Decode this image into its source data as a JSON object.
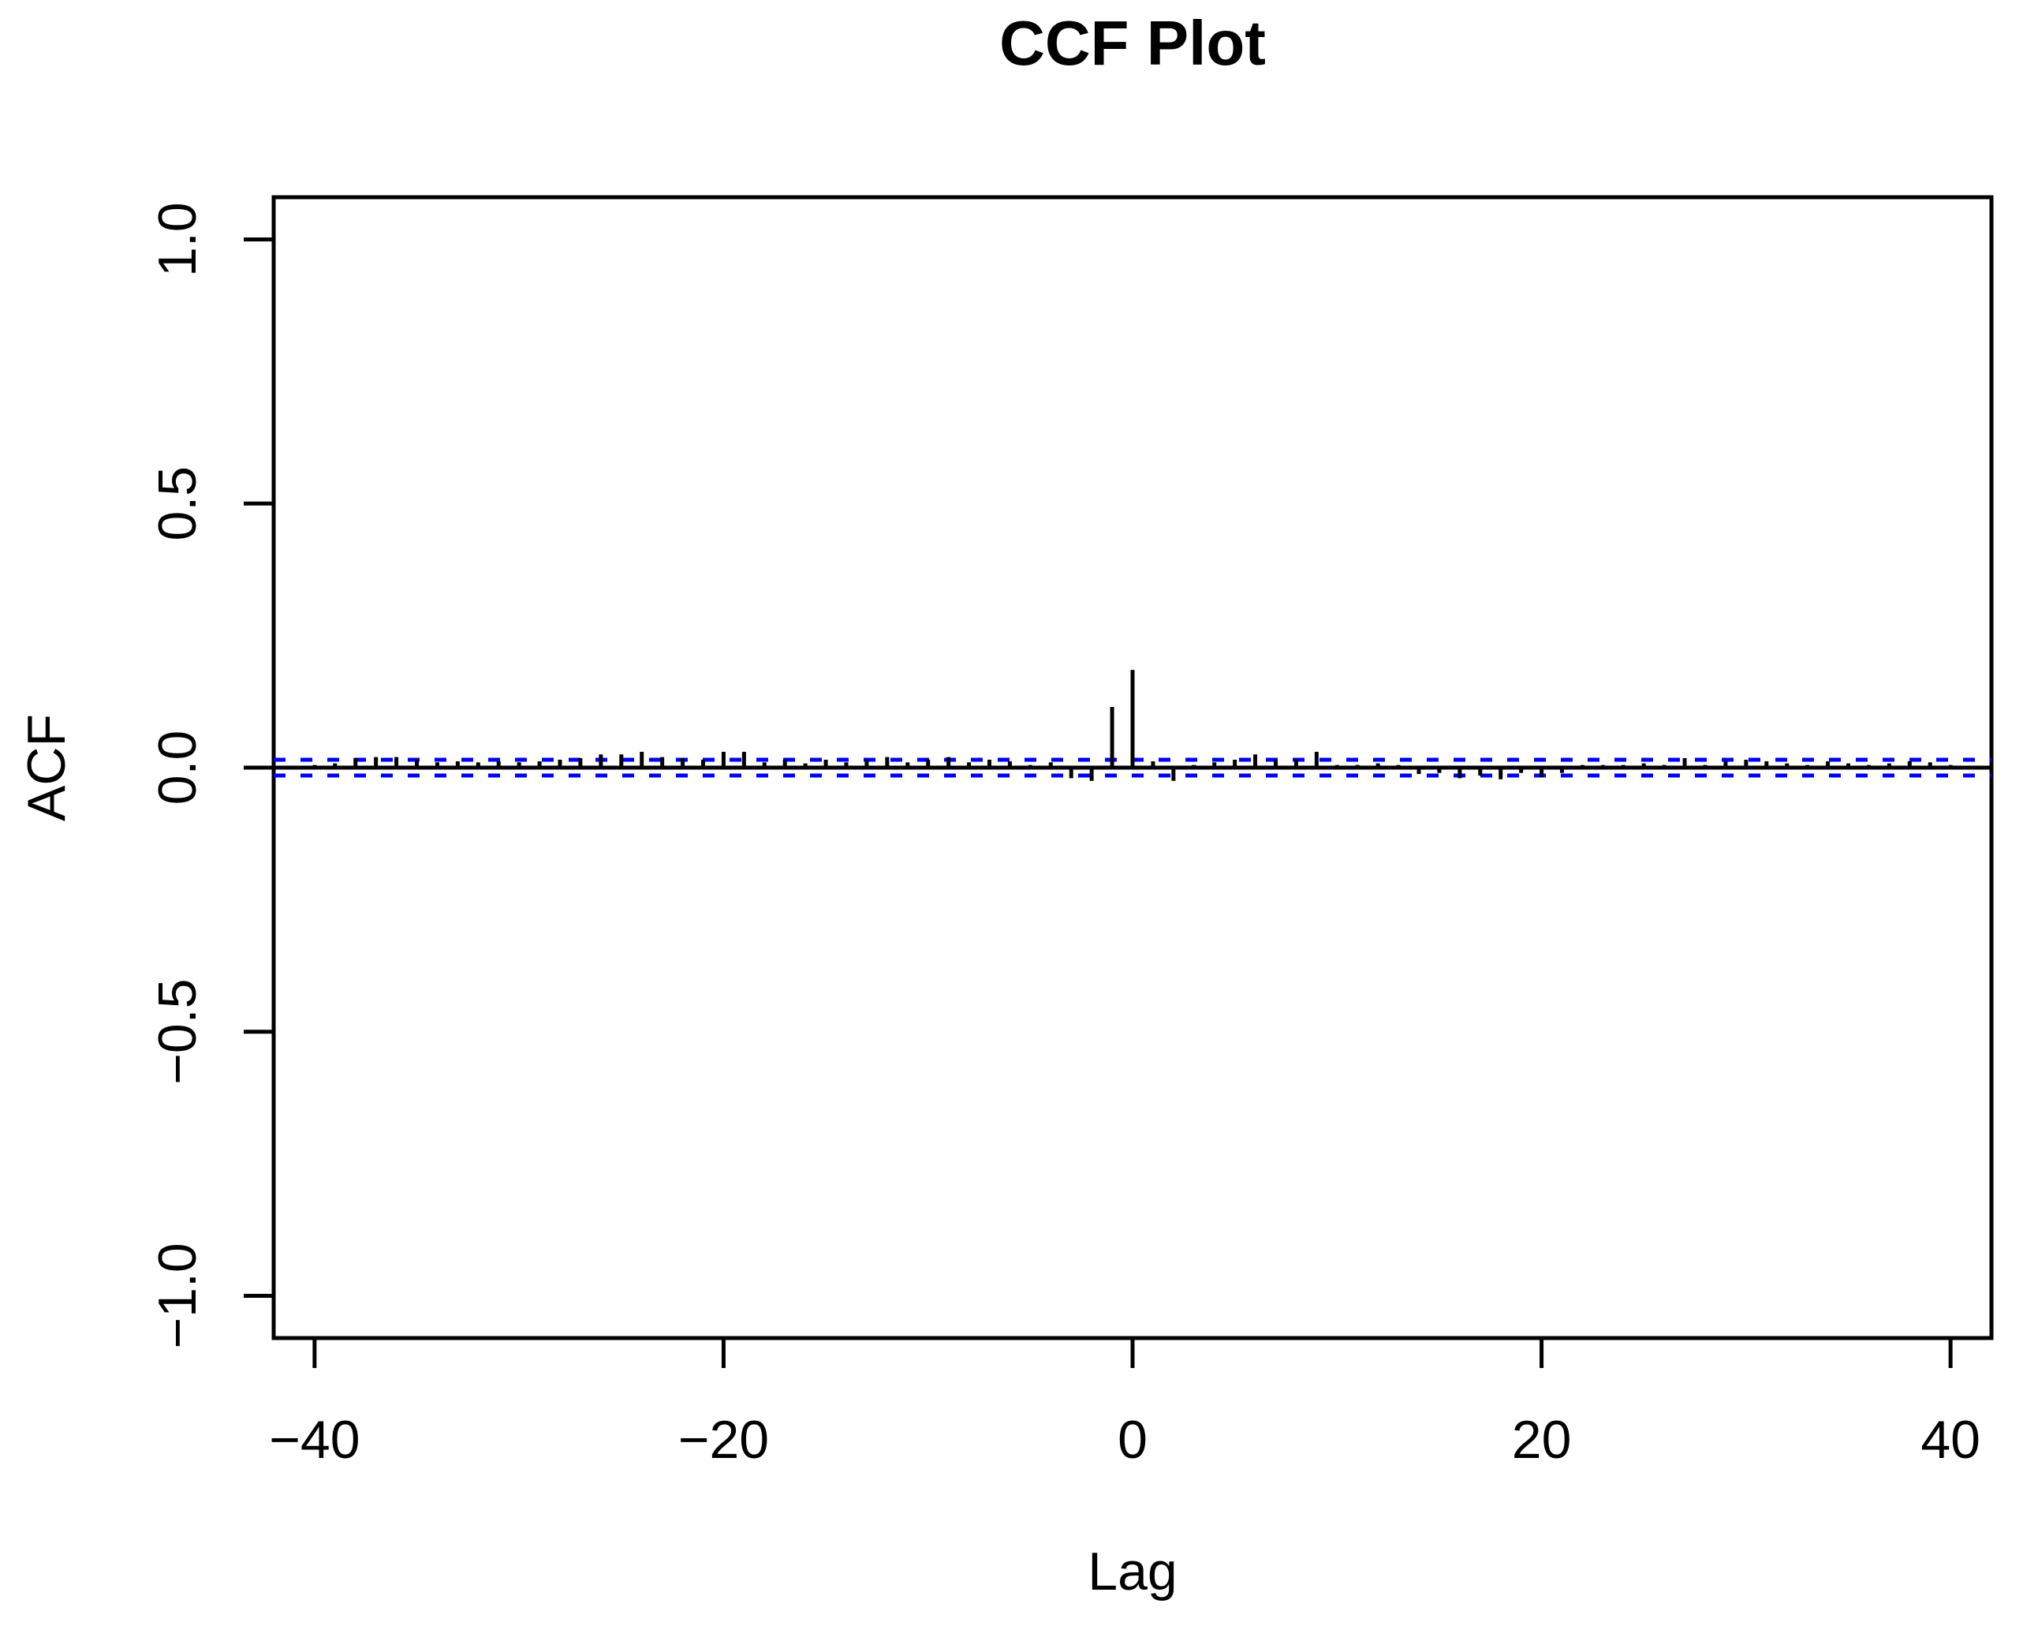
{
  "title": "CCF Plot",
  "chart_data": {
    "type": "bar",
    "title": "CCF Plot",
    "xlabel": "Lag",
    "ylabel": "ACF",
    "xlim": [
      -42,
      42
    ],
    "ylim": [
      -1.08,
      1.08
    ],
    "xticks": [
      -40,
      -20,
      0,
      20,
      40
    ],
    "xtick_labels": [
      "−40",
      "−20",
      "0",
      "20",
      "40"
    ],
    "yticks": [
      -1.0,
      -0.5,
      0.0,
      0.5,
      1.0
    ],
    "ytick_labels": [
      "−1.0",
      "−0.5",
      "0.0",
      "0.5",
      "1.0"
    ],
    "grid": "off",
    "legend": "none",
    "confidence_interval": 0.015,
    "ci_line_color": "#0000ff",
    "ci_line_style": "dashed",
    "bar_color": "#000000",
    "zero_line_color": "#000000",
    "lags": [
      -40,
      -39,
      -38,
      -37,
      -36,
      -35,
      -34,
      -33,
      -32,
      -31,
      -30,
      -29,
      -28,
      -27,
      -26,
      -25,
      -24,
      -23,
      -22,
      -21,
      -20,
      -19,
      -18,
      -17,
      -16,
      -15,
      -14,
      -13,
      -12,
      -11,
      -10,
      -9,
      -8,
      -7,
      -6,
      -5,
      -4,
      -3,
      -2,
      -1,
      0,
      1,
      2,
      3,
      4,
      5,
      6,
      7,
      8,
      9,
      10,
      11,
      12,
      13,
      14,
      15,
      16,
      17,
      18,
      19,
      20,
      21,
      22,
      23,
      24,
      25,
      26,
      27,
      28,
      29,
      30,
      31,
      32,
      33,
      34,
      35,
      36,
      37,
      38,
      39,
      40
    ],
    "values": [
      0.005,
      0.008,
      0.018,
      0.02,
      0.02,
      0.015,
      0.01,
      0.012,
      0.01,
      0.012,
      0.01,
      0.012,
      0.015,
      0.018,
      0.025,
      0.025,
      0.03,
      0.02,
      0.018,
      0.015,
      0.03,
      0.03,
      0.01,
      0.015,
      0.008,
      0.015,
      0.01,
      0.015,
      0.02,
      0.01,
      0.015,
      0.02,
      0.01,
      0.015,
      0.012,
      0.005,
      0.01,
      -0.02,
      -0.025,
      0.115,
      0.185,
      0.012,
      -0.025,
      0.005,
      0.01,
      0.015,
      0.025,
      0.015,
      0.015,
      0.03,
      0.005,
      0.005,
      0.008,
      0.005,
      -0.012,
      -0.01,
      -0.02,
      -0.015,
      -0.022,
      -0.01,
      -0.018,
      -0.01,
      0.005,
      0.005,
      0.005,
      0.008,
      0.005,
      0.018,
      0.005,
      0.012,
      0.015,
      0.012,
      0.008,
      0.005,
      0.012,
      0.008,
      0.005,
      0.008,
      0.012,
      0.01,
      0.005
    ]
  }
}
